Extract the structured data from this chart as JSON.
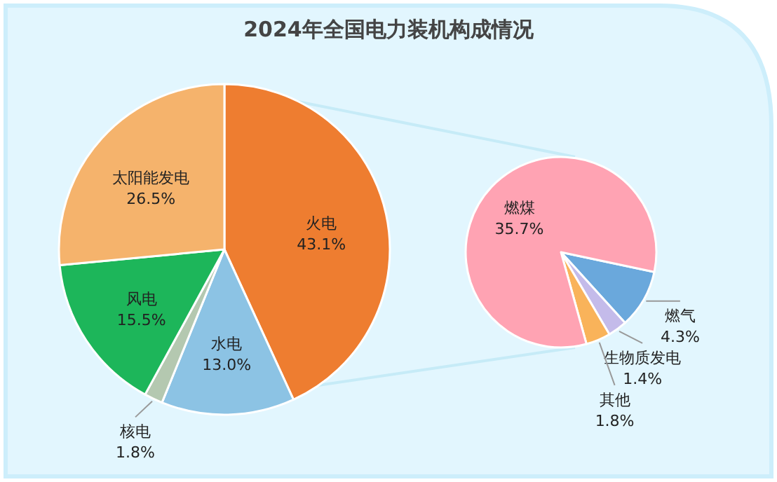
{
  "chart_data": [
    {
      "type": "pie",
      "title": "2024年全国电力装机构成情况",
      "categories": [
        "火电",
        "水电",
        "核电",
        "风电",
        "太阳能发电"
      ],
      "values": [
        43.1,
        13.0,
        1.8,
        15.5,
        26.5
      ],
      "colors": [
        "#ee7d30",
        "#8cc3e4",
        "#b4c8b0",
        "#1db65a",
        "#f5b36c"
      ],
      "value_labels": [
        "43.1%",
        "13.0%",
        "1.8%",
        "15.5%",
        "26.5%"
      ]
    },
    {
      "type": "pie",
      "categories": [
        "燃气",
        "生物质发电",
        "其他",
        "燃煤"
      ],
      "values": [
        4.3,
        1.4,
        1.8,
        35.7
      ],
      "colors": [
        "#6aa8dc",
        "#c4bbea",
        "#f9b35a",
        "#ffa3b3"
      ],
      "value_labels": [
        "4.3%",
        "1.4%",
        "1.8%",
        "35.7%"
      ]
    }
  ]
}
